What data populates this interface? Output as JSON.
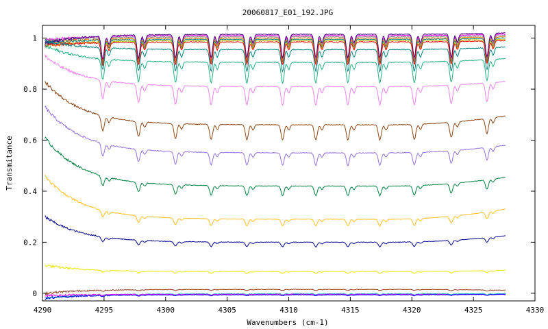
{
  "chart_data": {
    "type": "line",
    "title": "20060817_E01_192.JPG",
    "xlabel": "Wavenumbers (cm-1)",
    "ylabel": "Transmitance",
    "xlim": [
      4290,
      4330
    ],
    "ylim": [
      -0.03,
      1.05
    ],
    "grid": false,
    "legend": "none",
    "x_ticks": [
      4290,
      4295,
      4300,
      4305,
      4310,
      4315,
      4320,
      4325,
      4330
    ],
    "x_tick_labels": [
      "4290",
      "4295",
      "4300",
      "4305",
      "4310",
      "4315",
      "4320",
      "4325",
      "4330"
    ],
    "y_ticks": [
      0,
      0.2,
      0.4,
      0.6,
      0.8,
      1
    ],
    "y_tick_labels": [
      "0",
      "0.2",
      "0.4",
      "0.6",
      "0.8",
      "1"
    ],
    "x_range": [
      4290.2,
      4327.6
    ],
    "absorption_lines": [
      4294.9,
      4297.8,
      4300.8,
      4303.7,
      4306.6,
      4309.5,
      4312.2,
      4314.8,
      4317.4,
      4320.2,
      4323.2,
      4326.1
    ],
    "series": [
      {
        "color": "#ff00ff",
        "start": 0.99,
        "baseline": 1.01,
        "end": 1.015
      },
      {
        "color": "#888888",
        "start": 0.99,
        "baseline": 1.005,
        "end": 1.01
      },
      {
        "color": "#ff8000",
        "start": 0.98,
        "baseline": 1.0,
        "end": 1.005
      },
      {
        "color": "#008080",
        "start": 0.98,
        "baseline": 0.995,
        "end": 1.0
      },
      {
        "color": "#c0c000",
        "start": 0.97,
        "baseline": 0.99,
        "end": 0.995
      },
      {
        "color": "#ff0000",
        "start": 0.97,
        "baseline": 0.985,
        "end": 0.99
      },
      {
        "color": "#4b0082",
        "start": 0.98,
        "baseline": 1.015,
        "end": 1.02
      },
      {
        "color": "#008080",
        "start": 0.99,
        "baseline": 0.955,
        "end": 0.965
      },
      {
        "color": "#20b080",
        "start": 0.97,
        "baseline": 0.905,
        "end": 0.92
      },
      {
        "color": "#ee82ee",
        "start": 0.93,
        "baseline": 0.81,
        "end": 0.83
      },
      {
        "color": "#8b4513",
        "start": 0.83,
        "baseline": 0.66,
        "end": 0.695
      },
      {
        "color": "#9370db",
        "start": 0.73,
        "baseline": 0.55,
        "end": 0.58
      },
      {
        "color": "#008040",
        "start": 0.61,
        "baseline": 0.42,
        "end": 0.455
      },
      {
        "color": "#ffc020",
        "start": 0.46,
        "baseline": 0.29,
        "end": 0.33
      },
      {
        "color": "#00008b",
        "start": 0.3,
        "baseline": 0.2,
        "end": 0.225
      },
      {
        "color": "#e8e800",
        "start": 0.11,
        "baseline": 0.085,
        "end": 0.09
      },
      {
        "color": "#8b3a1a",
        "start": 0.0,
        "baseline": 0.015,
        "end": 0.012
      },
      {
        "color": "#00c0c0",
        "start": -0.02,
        "baseline": -0.002,
        "end": -0.002
      },
      {
        "color": "#ff00ff",
        "start": -0.01,
        "baseline": -0.004,
        "end": -0.005
      },
      {
        "color": "#0000ff",
        "start": -0.02,
        "baseline": -0.006,
        "end": -0.004
      }
    ]
  }
}
